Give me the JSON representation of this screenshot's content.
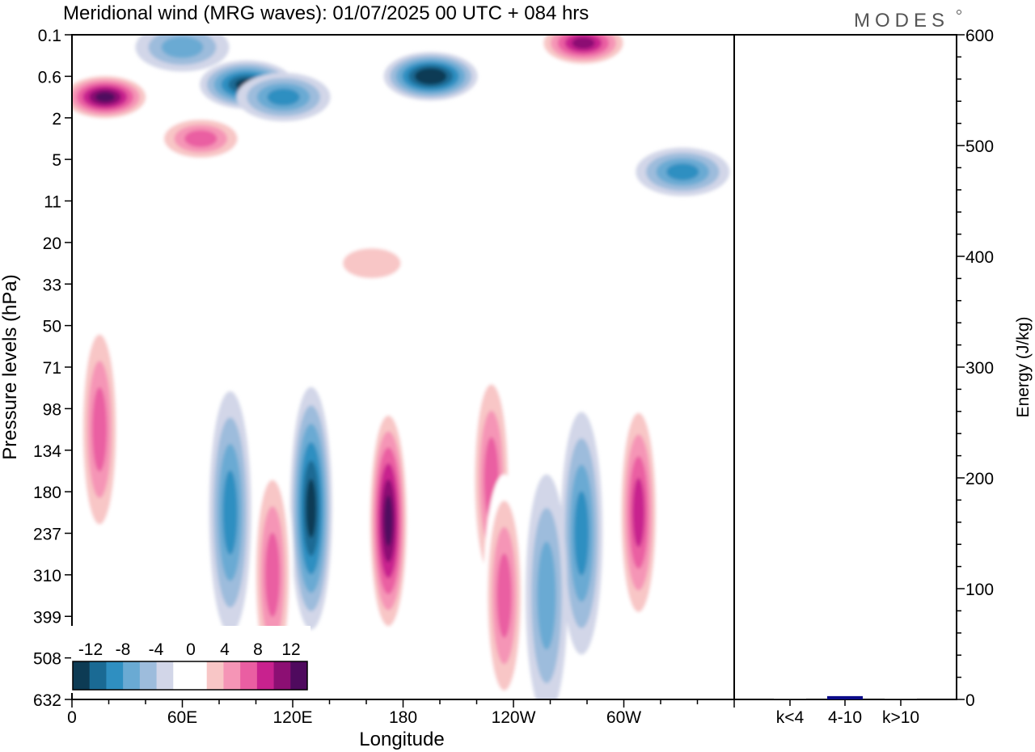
{
  "chart_data": [
    {
      "type": "heatmap",
      "title": "Meridional wind (MRG waves):  01/07/2025  00 UTC  + 084 hrs",
      "xlabel": "Longitude",
      "ylabel": "Pressure levels (hPa)",
      "x_ticks": [
        "0",
        "60E",
        "120E",
        "180",
        "120W",
        "60W"
      ],
      "x_tick_lon": [
        0,
        60,
        120,
        180,
        240,
        300
      ],
      "xlim": [
        0,
        360
      ],
      "y_ticks": [
        "0.1",
        "0.6",
        "2",
        "5",
        "11",
        "20",
        "33",
        "50",
        "71",
        "98",
        "134",
        "180",
        "237",
        "310",
        "399",
        "508",
        "632"
      ],
      "y_scale": "categorical pressure levels, 0.1 at top, 632 at bottom",
      "colorbar": {
        "labels": [
          "-12",
          "-8",
          "-4",
          "0",
          "4",
          "8",
          "12"
        ],
        "levels": [
          -14,
          -12,
          -10,
          -8,
          -6,
          -4,
          -2,
          2,
          4,
          6,
          8,
          10,
          12,
          14
        ],
        "colors": [
          "#0d3b54",
          "#1a6a94",
          "#2f8fc1",
          "#6aaad3",
          "#9dbcdc",
          "#d2d6e8",
          "#ffffff",
          "#ffffff",
          "#f8c6c6",
          "#f595b6",
          "#ea5ea2",
          "#c8228e",
          "#8c0f73",
          "#4f0a5e"
        ]
      },
      "centers": [
        {
          "lon": 18,
          "level": 1.5,
          "v": 15
        },
        {
          "lon": 70,
          "level": 2.5,
          "v": 9
        },
        {
          "lon": 95,
          "level": 1.2,
          "v": -12
        },
        {
          "lon": 115,
          "level": 1.5,
          "v": -8
        },
        {
          "lon": 195,
          "level": 1.0,
          "v": -14
        },
        {
          "lon": 60,
          "level": 0.3,
          "v": -6
        },
        {
          "lon": 278,
          "level": 0.2,
          "v": 12
        },
        {
          "lon": 332,
          "level": 3.3,
          "v": -9
        },
        {
          "lon": 15,
          "level": 9.5,
          "v": 8
        },
        {
          "lon": 130,
          "level": 11.4,
          "v": -12
        },
        {
          "lon": 172,
          "level": 11.7,
          "v": 14
        },
        {
          "lon": 228,
          "level": 10.7,
          "v": 8
        },
        {
          "lon": 308,
          "level": 11.5,
          "v": 11
        },
        {
          "lon": 277,
          "level": 12,
          "v": -8
        },
        {
          "lon": 86,
          "level": 11.5,
          "v": -8
        },
        {
          "lon": 258,
          "level": 13.5,
          "v": -6
        },
        {
          "lon": 109,
          "level": 13,
          "v": 9
        },
        {
          "lon": 235,
          "level": 13.5,
          "v": 9
        },
        {
          "lon": 163,
          "level": 5.5,
          "v": 4
        }
      ]
    },
    {
      "type": "bar",
      "categories": [
        "k<4",
        "4-10",
        "k>10"
      ],
      "values": [
        0,
        3,
        0
      ],
      "ylabel": "Energy (J/kg)",
      "ylim": [
        0,
        600
      ],
      "y_ticks": [
        "0",
        "100",
        "200",
        "300",
        "400",
        "500",
        "600"
      ],
      "bar_color": "#0b0b8a"
    }
  ],
  "logo_text": "MODES"
}
